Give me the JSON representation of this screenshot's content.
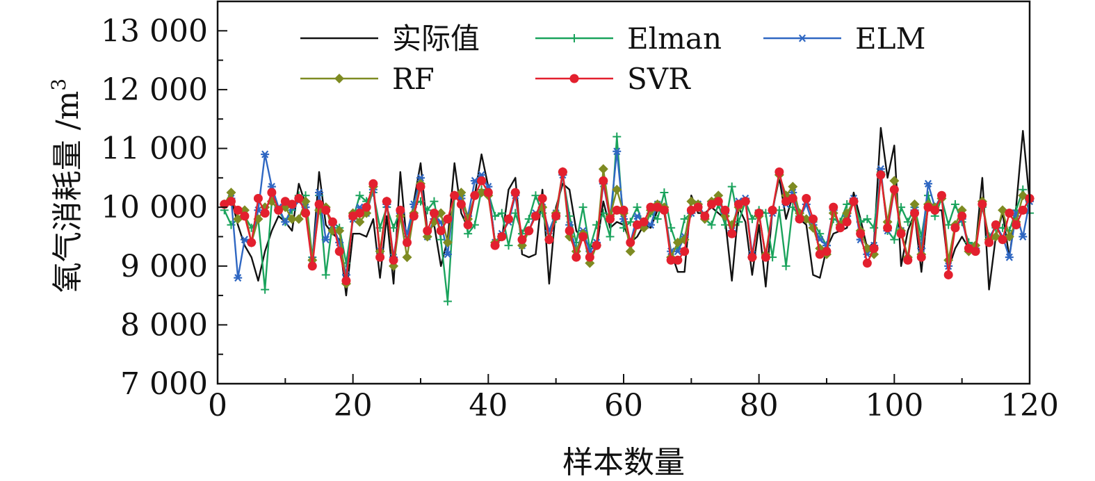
{
  "chart_data": {
    "type": "line",
    "xlabel": "样本数量",
    "ylabel": "氧气消耗量 /m",
    "ylabel_superscript": "3",
    "xlim": [
      0,
      120
    ],
    "ylim": [
      7000,
      13500
    ],
    "xticks": [
      0,
      20,
      40,
      60,
      80,
      100,
      120
    ],
    "xtick_labels": [
      "0",
      "20",
      "40",
      "60",
      "80",
      "100",
      "120"
    ],
    "yticks": [
      7000,
      8000,
      9000,
      10000,
      11000,
      12000,
      13000
    ],
    "ytick_labels": [
      "7 000",
      "8 000",
      "9 000",
      "10 000",
      "11 000",
      "12 000",
      "13 000"
    ],
    "grid": false,
    "legend_position": "top",
    "x": [
      1,
      2,
      3,
      4,
      5,
      6,
      7,
      8,
      9,
      10,
      11,
      12,
      13,
      14,
      15,
      16,
      17,
      18,
      19,
      20,
      21,
      22,
      23,
      24,
      25,
      26,
      27,
      28,
      29,
      30,
      31,
      32,
      33,
      34,
      35,
      36,
      37,
      38,
      39,
      40,
      41,
      42,
      43,
      44,
      45,
      46,
      47,
      48,
      49,
      50,
      51,
      52,
      53,
      54,
      55,
      56,
      57,
      58,
      59,
      60,
      61,
      62,
      63,
      64,
      65,
      66,
      67,
      68,
      69,
      70,
      71,
      72,
      73,
      74,
      75,
      76,
      77,
      78,
      79,
      80,
      81,
      82,
      83,
      84,
      85,
      86,
      87,
      88,
      89,
      90,
      91,
      92,
      93,
      94,
      95,
      96,
      97,
      98,
      99,
      100,
      101,
      102,
      103,
      104,
      105,
      106,
      107,
      108,
      109,
      110,
      111,
      112,
      113,
      114,
      115,
      116,
      117,
      118,
      119,
      120
    ],
    "series": [
      {
        "name": "实际值",
        "color": "#111111",
        "marker": "none",
        "values": [
          10050,
          10150,
          9700,
          9350,
          9150,
          8750,
          9250,
          9600,
          9850,
          9750,
          9600,
          10400,
          10050,
          9100,
          10600,
          9700,
          9550,
          9450,
          8500,
          9550,
          9550,
          9500,
          9800,
          8800,
          9850,
          8700,
          10600,
          9350,
          10100,
          10750,
          9600,
          9700,
          9000,
          9450,
          10750,
          9900,
          9650,
          10200,
          10900,
          10350,
          9400,
          9450,
          10300,
          10500,
          9200,
          9150,
          9200,
          10300,
          8700,
          10000,
          10400,
          10300,
          9600,
          9450,
          9350,
          9300,
          10100,
          9650,
          9750,
          9700,
          9400,
          9500,
          9700,
          9650,
          9950,
          9900,
          9250,
          8900,
          8900,
          10200,
          9900,
          9900,
          10000,
          9900,
          9800,
          8750,
          10000,
          9750,
          8850,
          9700,
          8650,
          9950,
          10500,
          9800,
          10200,
          9800,
          9700,
          8850,
          8800,
          9300,
          9550,
          9600,
          9650,
          10250,
          9800,
          9300,
          9400,
          11350,
          10500,
          11050,
          9000,
          9600,
          9900,
          8900,
          10050,
          9950,
          9950,
          8950,
          9300,
          9500,
          9300,
          9300,
          10500,
          8600,
          9500,
          9900,
          9150,
          10000,
          11300,
          10100
        ]
      },
      {
        "name": "Elman",
        "color": "#1aa35c",
        "marker": "plus",
        "values": [
          9950,
          9700,
          9800,
          9850,
          9650,
          9800,
          8600,
          10100,
          9950,
          9750,
          9950,
          10200,
          10200,
          9150,
          10200,
          8850,
          9750,
          9650,
          9050,
          9800,
          10200,
          10100,
          10250,
          9650,
          10000,
          9650,
          9950,
          9400,
          10050,
          10100,
          9950,
          10100,
          9450,
          8400,
          10200,
          10200,
          9550,
          9700,
          10300,
          10250,
          9850,
          9900,
          9350,
          9900,
          9550,
          9800,
          10200,
          9900,
          9500,
          9800,
          10550,
          9850,
          9400,
          10000,
          9300,
          9700,
          9900,
          9500,
          11200,
          9650,
          9750,
          10000,
          9650,
          9900,
          9800,
          10250,
          9650,
          9300,
          9800,
          9900,
          10000,
          9800,
          9700,
          10050,
          9700,
          10350,
          9750,
          10100,
          9800,
          9950,
          9900,
          9150,
          9950,
          9000,
          10000,
          9850,
          9800,
          9750,
          9550,
          9350,
          9800,
          9750,
          10050,
          10100,
          9750,
          9800,
          9650,
          10600,
          9600,
          9450,
          10000,
          9750,
          10000,
          9500,
          10200,
          9850,
          10150,
          9700,
          10050,
          9750,
          9400,
          9350,
          10000,
          9500,
          9650,
          9650,
          9600,
          9950,
          10300,
          9900
        ]
      },
      {
        "name": "ELM",
        "color": "#2f67c2",
        "marker": "asterisk",
        "values": [
          10050,
          10150,
          8800,
          9450,
          9400,
          9950,
          10900,
          10350,
          10000,
          9750,
          10000,
          10100,
          10000,
          9100,
          10250,
          9450,
          9700,
          9400,
          8850,
          9800,
          10000,
          9900,
          10300,
          9250,
          10050,
          9150,
          9900,
          9550,
          10050,
          10500,
          9500,
          9800,
          9750,
          9200,
          10200,
          10150,
          9850,
          10450,
          10550,
          10350,
          9400,
          9550,
          9750,
          10200,
          9350,
          9600,
          9900,
          10000,
          9600,
          9900,
          10550,
          9700,
          9250,
          9600,
          9250,
          9400,
          10400,
          9800,
          10950,
          9800,
          9400,
          9850,
          9750,
          9700,
          10050,
          10000,
          9250,
          9250,
          9500,
          9900,
          10050,
          9850,
          10050,
          10100,
          9900,
          9600,
          10100,
          10150,
          9200,
          9900,
          9150,
          9900,
          10600,
          10050,
          10250,
          9800,
          10050,
          9700,
          9450,
          9350,
          9950,
          9650,
          9850,
          10150,
          9450,
          9200,
          9350,
          10650,
          9600,
          10300,
          9600,
          9100,
          9950,
          9300,
          10400,
          10000,
          10200,
          9000,
          9650,
          9800,
          9300,
          9300,
          10050,
          9450,
          9700,
          9500,
          9150,
          9900,
          9500,
          10100
        ]
      },
      {
        "name": "RF",
        "color": "#7e8b22",
        "marker": "diamond",
        "values": [
          10050,
          10250,
          9800,
          9950,
          9400,
          9800,
          10000,
          10100,
          9950,
          10000,
          9800,
          9800,
          10100,
          9100,
          9950,
          10000,
          9600,
          9600,
          8700,
          9900,
          9750,
          9900,
          10350,
          9250,
          10100,
          9000,
          9850,
          9150,
          9900,
          10400,
          9500,
          9750,
          9900,
          9400,
          10200,
          10250,
          9800,
          10200,
          10250,
          10200,
          9400,
          9500,
          9800,
          10250,
          9350,
          9600,
          9850,
          10000,
          9450,
          9900,
          10600,
          9500,
          9250,
          9550,
          9050,
          9350,
          10650,
          9850,
          10300,
          9900,
          9250,
          9700,
          9650,
          9950,
          10050,
          10000,
          9150,
          9400,
          9450,
          10100,
          10050,
          9800,
          10100,
          10200,
          9850,
          9700,
          10000,
          10100,
          9150,
          9850,
          9200,
          9950,
          10550,
          10200,
          10350,
          9900,
          9800,
          9650,
          9300,
          9200,
          9900,
          9700,
          9900,
          10100,
          9600,
          9300,
          9200,
          10550,
          9750,
          10450,
          9600,
          9150,
          10050,
          9200,
          10050,
          10000,
          10150,
          9100,
          9700,
          9950,
          9250,
          9350,
          10100,
          9450,
          9500,
          9950,
          9500,
          9750,
          10200,
          10150
        ]
      },
      {
        "name": "SVR",
        "color": "#e3202e",
        "marker": "circle",
        "values": [
          10050,
          10100,
          9950,
          9850,
          9400,
          10150,
          9900,
          10250,
          9950,
          10100,
          10050,
          10150,
          9900,
          9000,
          10050,
          9950,
          9750,
          9250,
          8750,
          9850,
          9900,
          10000,
          10400,
          9150,
          10100,
          9100,
          9950,
          9400,
          9850,
          10350,
          9600,
          9900,
          9600,
          9800,
          10200,
          10050,
          9700,
          10200,
          10450,
          10250,
          9350,
          9500,
          9800,
          10250,
          9450,
          9600,
          9850,
          10150,
          9450,
          9850,
          10600,
          9600,
          9150,
          9500,
          9150,
          9350,
          10450,
          9800,
          9950,
          9950,
          9400,
          9700,
          9750,
          10000,
          10000,
          9950,
          9100,
          9100,
          9250,
          9950,
          10000,
          9850,
          10050,
          10100,
          9950,
          9550,
          10050,
          10100,
          9150,
          9900,
          9150,
          9950,
          10600,
          10100,
          10150,
          9800,
          10150,
          9800,
          9200,
          9250,
          10000,
          9650,
          9750,
          10100,
          9550,
          9050,
          9300,
          10550,
          9650,
          10300,
          9550,
          9100,
          9900,
          9150,
          10000,
          9950,
          10200,
          8850,
          9650,
          9850,
          9300,
          9250,
          10050,
          9400,
          9700,
          9450,
          9900,
          9700,
          9950,
          10150
        ]
      }
    ]
  }
}
